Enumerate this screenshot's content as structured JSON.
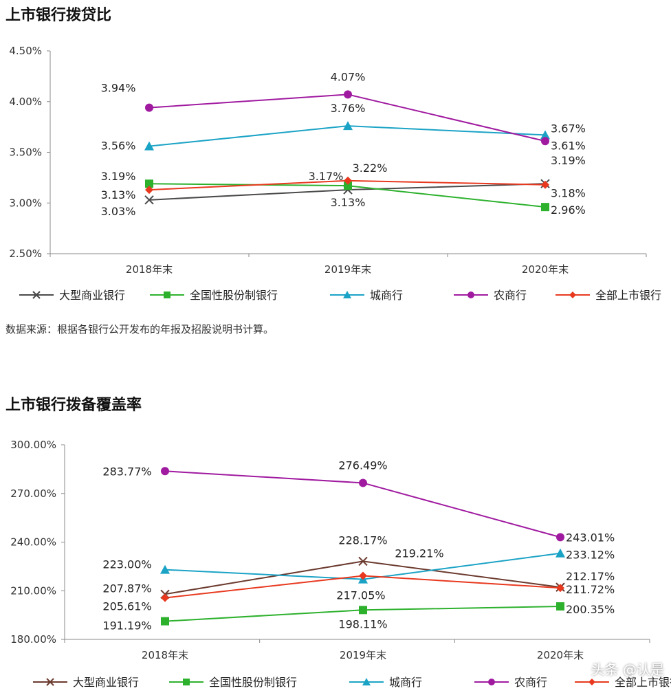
{
  "page": {
    "source_note": "数据来源：根据各银行公开发布的年报及招股说明书计算。",
    "watermark": "头条 @认是"
  },
  "chart_data": [
    {
      "type": "line",
      "title": "上市银行拨贷比",
      "categories": [
        "2018年末",
        "2019年末",
        "2020年末"
      ],
      "yticks": [
        "4.50%",
        "4.00%",
        "3.50%",
        "3.00%",
        "2.50%"
      ],
      "ylim": [
        2.5,
        4.5
      ],
      "grid": false,
      "legend_position": "bottom",
      "series": [
        {
          "name": "大型商业银行",
          "color": "#4a4a4a",
          "marker": "x",
          "values": [
            3.03,
            3.13,
            3.19
          ],
          "labels": [
            "3.03%",
            "3.13%",
            "3.19%"
          ]
        },
        {
          "name": "全国性股份制银行",
          "color": "#2db12d",
          "marker": "square",
          "values": [
            3.19,
            3.17,
            2.96
          ],
          "labels": [
            "3.19%",
            "3.17%",
            "2.96%"
          ]
        },
        {
          "name": "城商行",
          "color": "#1ba3c6",
          "marker": "triangle",
          "values": [
            3.56,
            3.76,
            3.67
          ],
          "labels": [
            "3.56%",
            "3.76%",
            "3.67%"
          ]
        },
        {
          "name": "农商行",
          "color": "#a01aa0",
          "marker": "circle",
          "values": [
            3.94,
            4.07,
            3.61
          ],
          "labels": [
            "3.94%",
            "4.07%",
            "3.61%"
          ]
        },
        {
          "name": "全部上市银行",
          "color": "#e8391f",
          "marker": "diamond",
          "values": [
            3.13,
            3.22,
            3.18
          ],
          "labels": [
            "3.13%",
            "3.22%",
            "3.18%"
          ]
        }
      ]
    },
    {
      "type": "line",
      "title": "上市银行拨备覆盖率",
      "categories": [
        "2018年末",
        "2019年末",
        "2020年末"
      ],
      "yticks": [
        "300.00%",
        "270.00%",
        "240.00%",
        "210.00%",
        "180.00%"
      ],
      "ylim": [
        180,
        300
      ],
      "grid": false,
      "legend_position": "bottom",
      "series": [
        {
          "name": "大型商业银行",
          "color": "#6b3a2e",
          "marker": "x",
          "values": [
            207.87,
            228.17,
            212.17
          ],
          "labels": [
            "207.87%",
            "228.17%",
            "212.17%"
          ]
        },
        {
          "name": "全国性股份制银行",
          "color": "#2db12d",
          "marker": "square",
          "values": [
            191.19,
            198.11,
            200.35
          ],
          "labels": [
            "191.19%",
            "198.11%",
            "200.35%"
          ]
        },
        {
          "name": "城商行",
          "color": "#1ba3c6",
          "marker": "triangle",
          "values": [
            223.0,
            217.05,
            233.12
          ],
          "labels": [
            "223.00%",
            "217.05%",
            "233.12%"
          ]
        },
        {
          "name": "农商行",
          "color": "#a01aa0",
          "marker": "circle",
          "values": [
            283.77,
            276.49,
            243.01
          ],
          "labels": [
            "283.77%",
            "276.49%",
            "243.01%"
          ]
        },
        {
          "name": "全部上市银行",
          "color": "#e8391f",
          "marker": "diamond",
          "values": [
            205.61,
            219.21,
            211.72
          ],
          "labels": [
            "205.61%",
            "219.21%",
            "211.72%"
          ]
        }
      ]
    }
  ]
}
